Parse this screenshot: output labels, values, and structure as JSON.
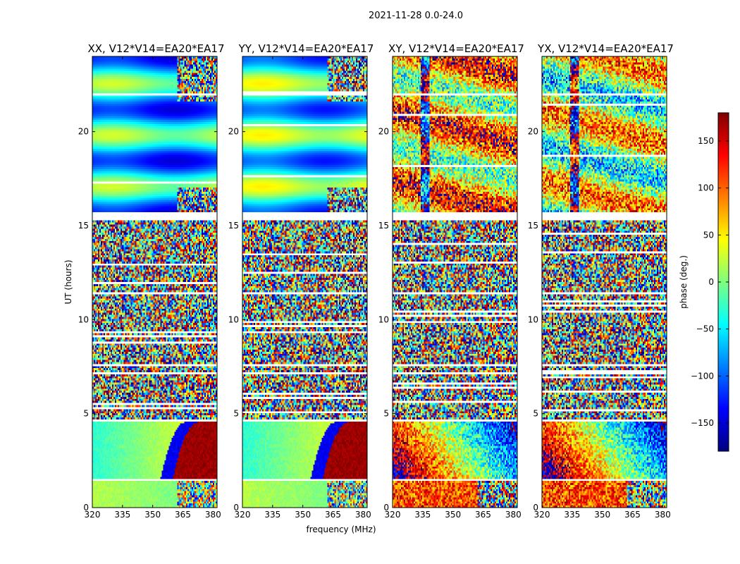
{
  "figure": {
    "suptitle": "2021-11-28 0.0-24.0",
    "xlabel": "frequency (MHz)",
    "ylabel": "UT (hours)"
  },
  "chart_data": {
    "type": "heatmap",
    "x": {
      "label": "frequency (MHz)",
      "range": [
        320,
        382
      ],
      "ticks": [
        320,
        335,
        350,
        365,
        380
      ]
    },
    "y": {
      "label": "UT (hours)",
      "range": [
        0,
        24
      ],
      "ticks": [
        0,
        5,
        10,
        15,
        20
      ]
    },
    "panels": [
      {
        "title": "XX, V12*V14=EA20*EA17",
        "pattern": "parallel",
        "upper_block_mean_deg": -60
      },
      {
        "title": "YY, V12*V14=EA20*EA17",
        "pattern": "parallel",
        "upper_block_mean_deg": -40
      },
      {
        "title": "XY, V12*V14=EA20*EA17",
        "pattern": "cross",
        "upper_block_mean_deg": 60
      },
      {
        "title": "YX, V12*V14=EA20*EA17",
        "pattern": "cross",
        "upper_block_mean_deg": 20
      }
    ],
    "colorbar": {
      "label": "phase (deg.)",
      "range": [
        -180,
        180
      ],
      "ticks": [
        150,
        100,
        50,
        0,
        -50,
        -100,
        -150
      ],
      "tick_labels": [
        "150",
        "100",
        "50",
        "0",
        "−50",
        "−100",
        "−150"
      ],
      "colormap": "jet"
    },
    "flagged_bands_ut": [
      [
        1.4,
        1.55
      ],
      [
        4.55,
        4.7
      ],
      [
        7.1,
        7.2
      ],
      [
        7.5,
        7.6
      ],
      [
        11.3,
        11.4
      ],
      [
        15.3,
        15.7
      ],
      [
        21.9,
        22.0
      ]
    ]
  },
  "colors": {
    "frame": "#000000",
    "jet": [
      "#00007f",
      "#0000ff",
      "#007fff",
      "#00ffff",
      "#7fff7f",
      "#ffff00",
      "#ff7f00",
      "#ff0000",
      "#7f0000"
    ]
  }
}
